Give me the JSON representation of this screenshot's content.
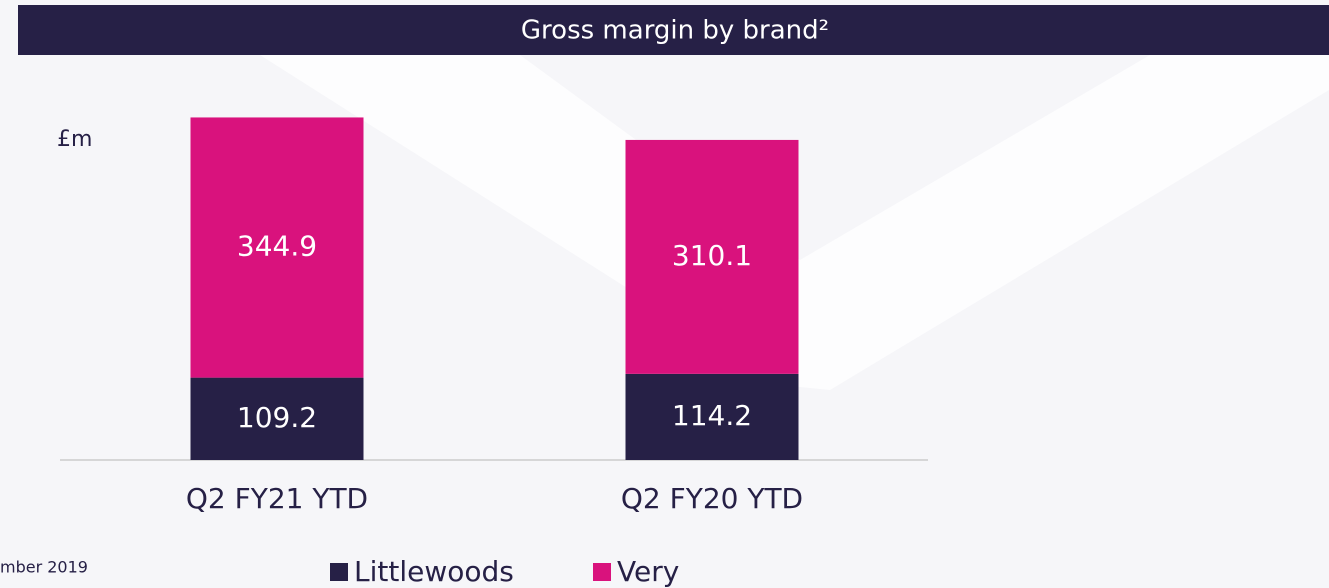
{
  "chart_data": {
    "type": "stacked_bar",
    "title": "Gross margin by brand²",
    "y_label": "£m",
    "categories": [
      "Q2 FY21 YTD",
      "Q2 FY20 YTD"
    ],
    "series": [
      {
        "name": "Littlewoods",
        "color": "#262046",
        "values": [
          109.2,
          114.2
        ]
      },
      {
        "name": "Very",
        "color": "#d9127d",
        "values": [
          344.9,
          310.1
        ]
      }
    ],
    "ylim": [
      0,
      460
    ],
    "footnote": "mber 2019"
  }
}
